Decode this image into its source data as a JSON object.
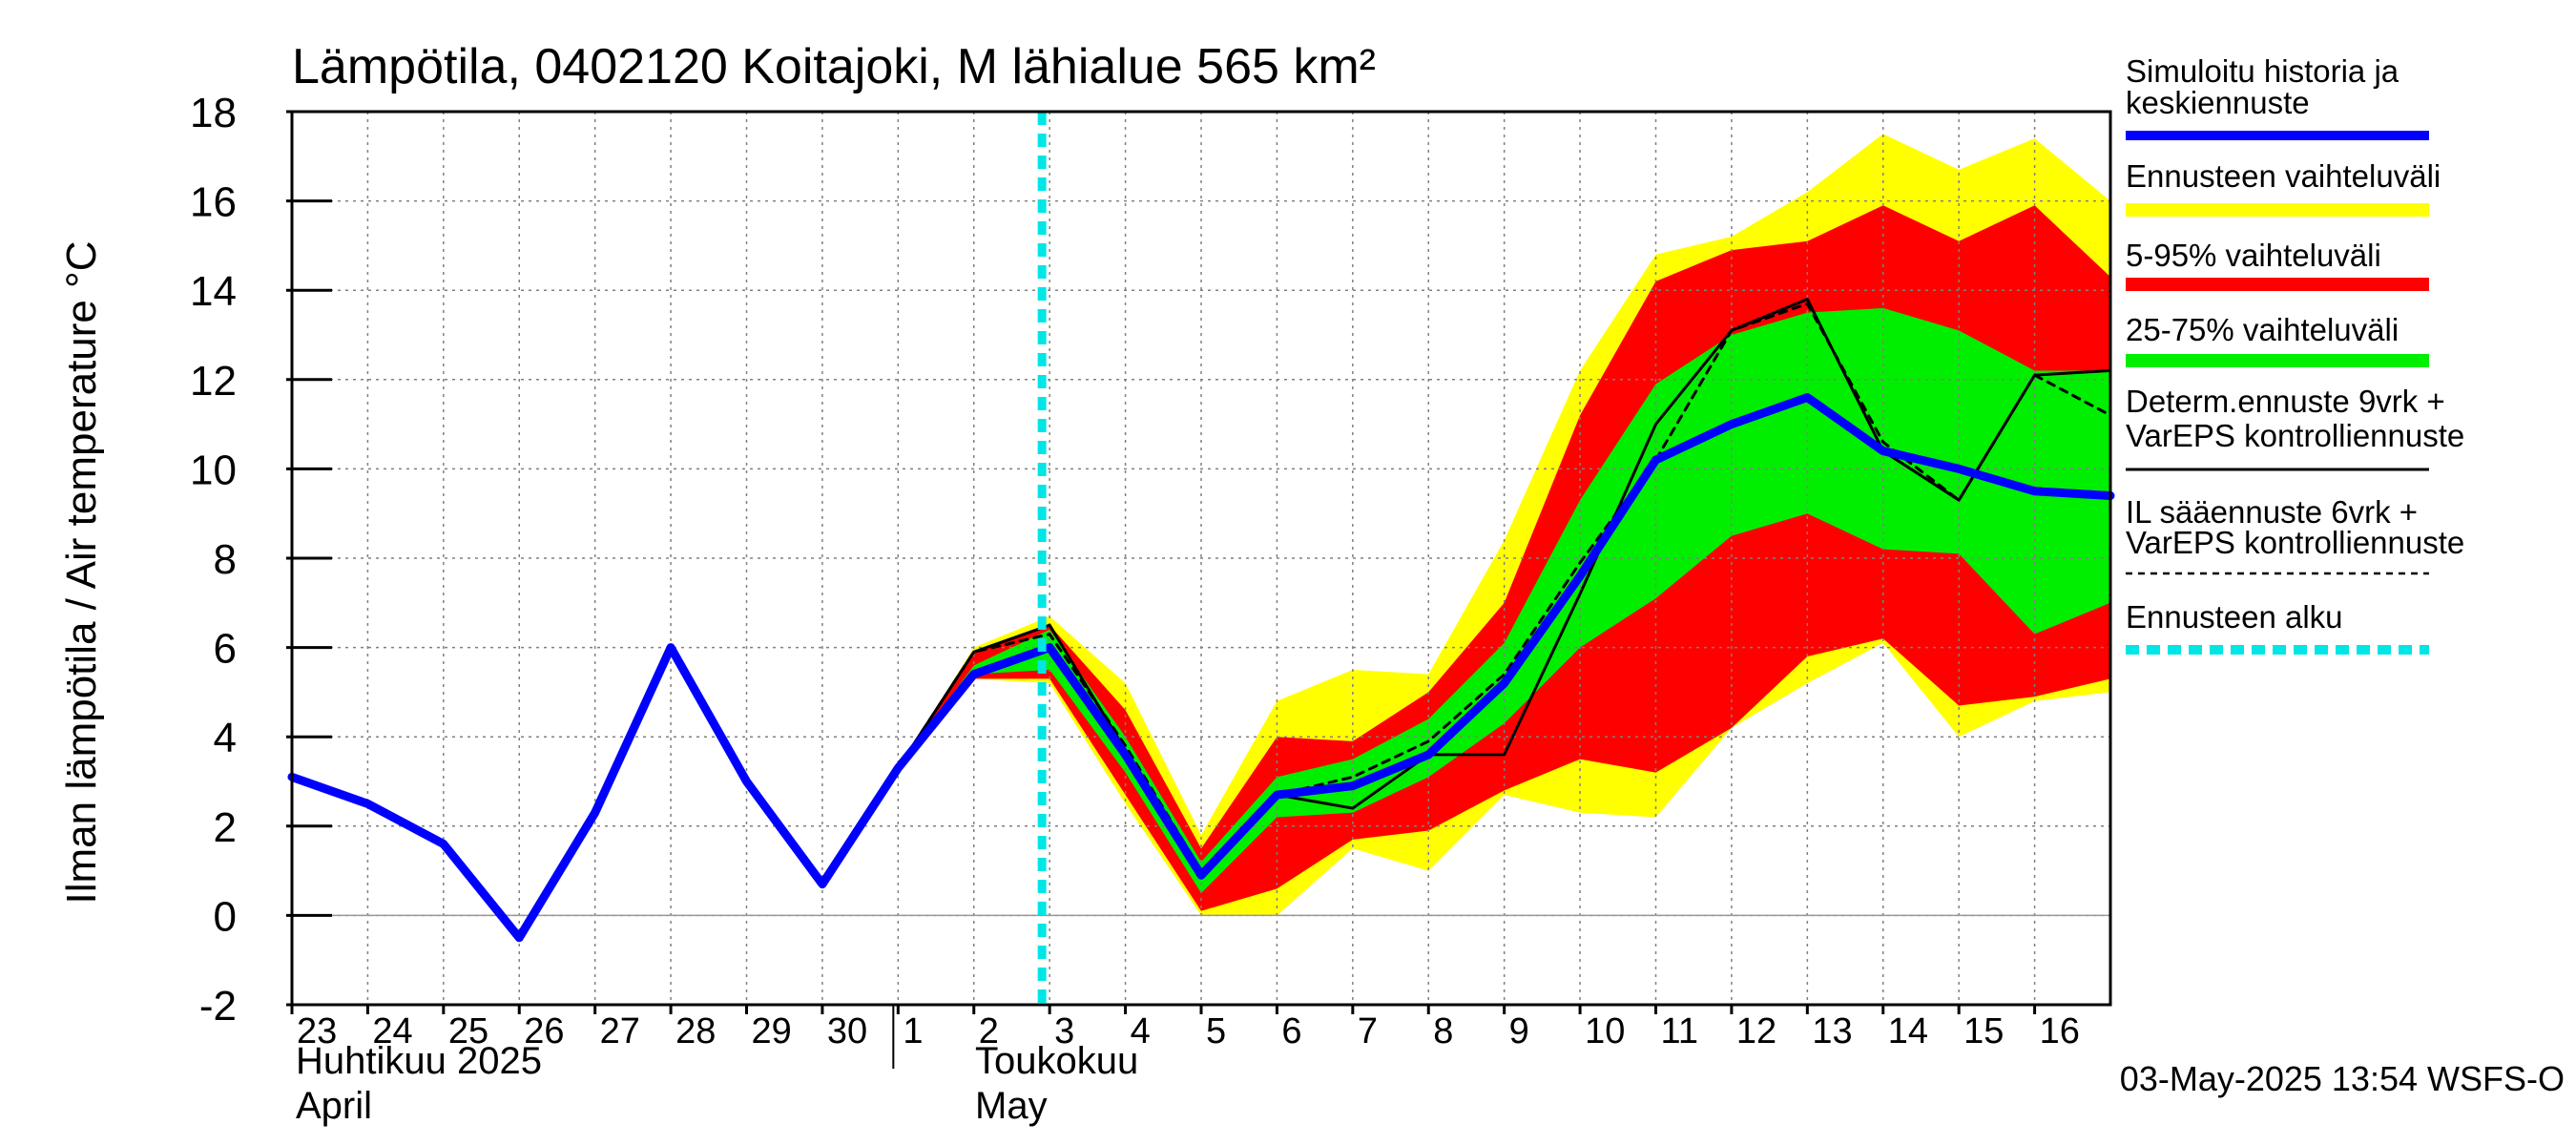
{
  "chart_data": {
    "type": "area",
    "title": "Lämpötila, 0402120 Koitajoki, M lähialue 565 km²",
    "ylabel": "Ilman lämpötila / Air temperature   °C",
    "ylim": [
      -2,
      18
    ],
    "yticks": [
      "18",
      "16",
      "14",
      "12",
      "10",
      "8",
      "6",
      "4",
      "2",
      "0",
      "-2"
    ],
    "x_range": [
      0,
      24
    ],
    "xticks": [
      {
        "x": 0,
        "label": "23"
      },
      {
        "x": 1,
        "label": "24"
      },
      {
        "x": 2,
        "label": "25"
      },
      {
        "x": 3,
        "label": "26"
      },
      {
        "x": 4,
        "label": "27"
      },
      {
        "x": 5,
        "label": "28"
      },
      {
        "x": 6,
        "label": "29"
      },
      {
        "x": 7,
        "label": "30"
      },
      {
        "x": 8,
        "label": "1"
      },
      {
        "x": 9,
        "label": "2"
      },
      {
        "x": 10,
        "label": "3"
      },
      {
        "x": 11,
        "label": "4"
      },
      {
        "x": 12,
        "label": "5"
      },
      {
        "x": 13,
        "label": "6"
      },
      {
        "x": 14,
        "label": "7"
      },
      {
        "x": 15,
        "label": "8"
      },
      {
        "x": 16,
        "label": "9"
      },
      {
        "x": 17,
        "label": "10"
      },
      {
        "x": 18,
        "label": "11"
      },
      {
        "x": 19,
        "label": "12"
      },
      {
        "x": 20,
        "label": "13"
      },
      {
        "x": 21,
        "label": "14"
      },
      {
        "x": 22,
        "label": "15"
      },
      {
        "x": 23,
        "label": "16"
      }
    ],
    "month_labels": {
      "april_fi": "Huhtikuu  2025",
      "april_en": "April",
      "may_fi": "Toukokuu",
      "may_en": "May"
    },
    "forecast_start_x": 10,
    "bands": [
      {
        "name": "Ennusteen vaihteluväli",
        "color": "#ffff00",
        "x": [
          8,
          9,
          10,
          11,
          12,
          13,
          14,
          15,
          16,
          17,
          18,
          19,
          20,
          21,
          22,
          23,
          24
        ],
        "upper": [
          3.3,
          6.0,
          6.7,
          5.2,
          1.8,
          4.8,
          5.5,
          5.4,
          8.4,
          12.2,
          14.8,
          15.2,
          16.2,
          17.5,
          16.7,
          17.4,
          16.0
        ],
        "lower": [
          3.3,
          5.3,
          5.2,
          2.5,
          0.0,
          0.0,
          1.5,
          1.0,
          2.7,
          2.3,
          2.2,
          4.2,
          5.2,
          6.1,
          4.0,
          4.8,
          5.0
        ]
      },
      {
        "name": "5-95% vaihteluväli",
        "color": "#ff0000",
        "x": [
          8,
          9,
          10,
          11,
          12,
          13,
          14,
          15,
          16,
          17,
          18,
          19,
          20,
          21,
          22,
          23,
          24
        ],
        "upper": [
          3.3,
          5.9,
          6.5,
          4.6,
          1.5,
          4.0,
          3.9,
          5.0,
          7.0,
          11.2,
          14.2,
          14.9,
          15.1,
          15.9,
          15.1,
          15.9,
          14.3
        ],
        "lower": [
          3.3,
          5.3,
          5.3,
          2.7,
          0.1,
          0.6,
          1.7,
          1.9,
          2.8,
          3.5,
          3.2,
          4.2,
          5.8,
          6.2,
          4.7,
          4.9,
          5.3
        ]
      },
      {
        "name": "25-75% vaihteluväli",
        "color": "#00ee00",
        "x": [
          8,
          9,
          10,
          11,
          12,
          13,
          14,
          15,
          16,
          17,
          18,
          19,
          20,
          21,
          22,
          23,
          24
        ],
        "upper": [
          3.3,
          5.6,
          6.4,
          4.0,
          1.2,
          3.1,
          3.5,
          4.4,
          6.1,
          9.3,
          11.9,
          13.0,
          13.5,
          13.6,
          13.1,
          12.2,
          12.2
        ],
        "lower": [
          3.3,
          5.4,
          5.5,
          3.2,
          0.5,
          2.2,
          2.3,
          3.1,
          4.3,
          6.0,
          7.1,
          8.5,
          9.0,
          8.2,
          8.1,
          6.3,
          7.0
        ]
      }
    ],
    "series": [
      {
        "name": "Determ.ennuste 9vrk + VarEPS kontrolliennuste",
        "color": "#000000",
        "style": "solid",
        "x": [
          8,
          9,
          10,
          11,
          12,
          13,
          14,
          15,
          16,
          17,
          18,
          19,
          20,
          21,
          22,
          23,
          24
        ],
        "values": [
          3.3,
          5.9,
          6.5,
          3.7,
          0.9,
          2.7,
          2.4,
          3.6,
          3.6,
          7.2,
          11.0,
          13.1,
          13.8,
          10.4,
          9.3,
          12.1,
          12.2
        ]
      },
      {
        "name": "IL sääennuste 6vrk + VarEPS kontrolliennuste",
        "color": "#000000",
        "style": "dashed",
        "x": [
          8,
          9,
          10,
          11,
          12,
          13,
          14,
          15,
          16,
          17,
          18,
          19,
          20,
          21,
          22,
          23,
          24
        ],
        "values": [
          3.3,
          5.9,
          6.3,
          3.8,
          1.0,
          2.7,
          3.1,
          3.9,
          5.4,
          7.9,
          10.2,
          13.1,
          13.7,
          10.6,
          9.3,
          12.1,
          11.2
        ]
      },
      {
        "name": "Simuloitu historia ja keskiennuste",
        "color": "#0000ff",
        "style": "solid",
        "x": [
          0,
          1,
          2,
          3,
          4,
          5,
          6,
          7,
          8,
          9,
          10,
          11,
          12,
          13,
          14,
          15,
          16,
          17,
          18,
          19,
          20,
          21,
          22,
          23,
          24
        ],
        "values": [
          3.1,
          2.5,
          1.6,
          -0.5,
          2.3,
          6.0,
          3.0,
          0.7,
          3.3,
          5.4,
          6.0,
          3.6,
          0.9,
          2.7,
          2.9,
          3.6,
          5.2,
          7.6,
          10.2,
          11.0,
          11.6,
          10.4,
          10.0,
          9.5,
          9.4
        ]
      }
    ],
    "legend": [
      {
        "label": [
          "Simuloitu historia ja",
          "keskiennuste"
        ],
        "color": "#0000ff",
        "kind": "line"
      },
      {
        "label": [
          "Ennusteen vaihteluväli"
        ],
        "color": "#ffff00",
        "kind": "band"
      },
      {
        "label": [
          "5-95% vaihteluväli"
        ],
        "color": "#ff0000",
        "kind": "band"
      },
      {
        "label": [
          "25-75% vaihteluväli"
        ],
        "color": "#00ee00",
        "kind": "band"
      },
      {
        "label": [
          "Determ.ennuste 9vrk +",
          "VarEPS kontrolliennuste"
        ],
        "color": "#000000",
        "kind": "thin"
      },
      {
        "label": [
          "IL sääennuste 6vrk  +",
          "  VarEPS kontrolliennuste"
        ],
        "color": "#000000",
        "kind": "dashed"
      },
      {
        "label": [
          "Ennusteen alku"
        ],
        "color": "#00e5e5",
        "kind": "cyan-dashed"
      }
    ],
    "legend_position": "right",
    "grid": true,
    "footer": "03-May-2025 13:54 WSFS-O",
    "palette": {
      "cyan": "#00e5e5",
      "grid": "#808080"
    }
  }
}
